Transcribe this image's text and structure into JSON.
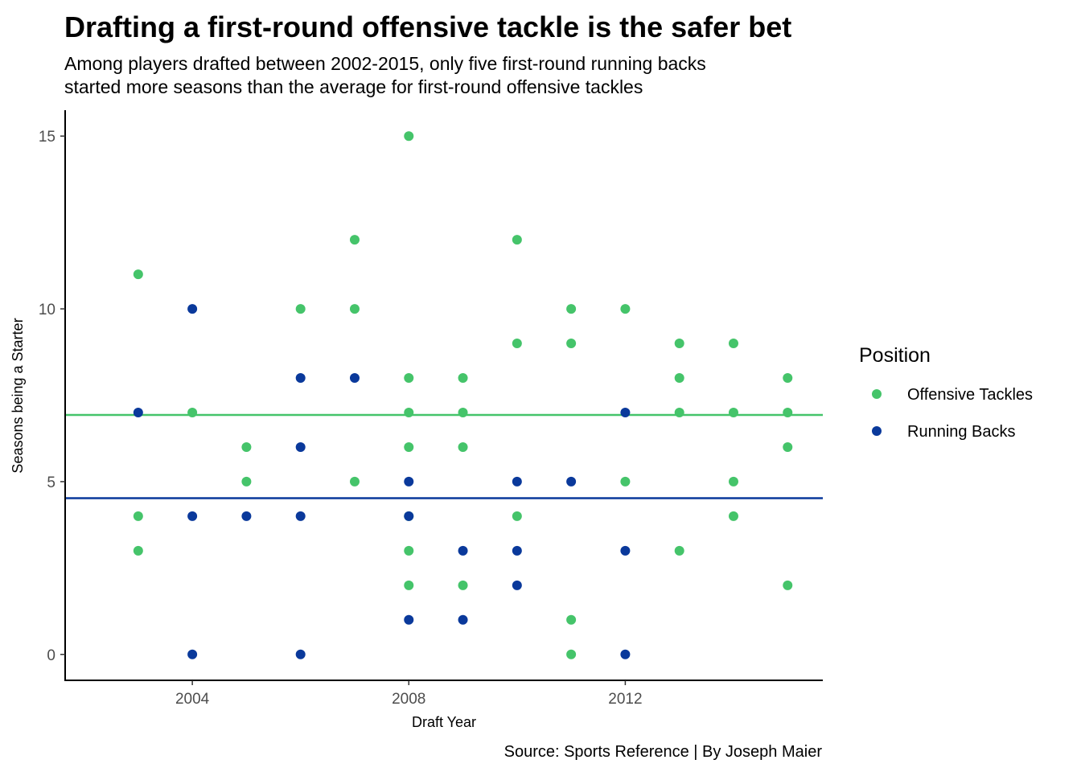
{
  "chart_data": {
    "type": "scatter",
    "title": "Drafting a first-round offensive tackle is the safer bet",
    "subtitle": [
      "Among players drafted between 2002-2015, only five first-round running backs",
      "started more seasons than the average for first-round offensive tackles"
    ],
    "caption": "Source: Sports Reference | By Joseph Maier",
    "xlabel": "Draft Year",
    "ylabel": "Seasons being a Starter",
    "xlim": [
      2001.65,
      2015.65
    ],
    "ylim": [
      -0.75,
      15.75
    ],
    "x_ticks": [
      2004,
      2008,
      2012
    ],
    "y_ticks": [
      0,
      5,
      10,
      15
    ],
    "grid": false,
    "legend": {
      "title": "Position",
      "placement": "right"
    },
    "reference_lines": [
      {
        "series": "Offensive Tackles",
        "y": 6.93
      },
      {
        "series": "Running Backs",
        "y": 4.52
      }
    ],
    "series": [
      {
        "name": "Offensive Tackles",
        "color": "#45C46A",
        "points": [
          [
            2003,
            11
          ],
          [
            2003,
            4
          ],
          [
            2003,
            3
          ],
          [
            2004,
            7
          ],
          [
            2005,
            6
          ],
          [
            2005,
            5
          ],
          [
            2006,
            10
          ],
          [
            2007,
            12
          ],
          [
            2007,
            10
          ],
          [
            2007,
            5
          ],
          [
            2008,
            15
          ],
          [
            2008,
            8
          ],
          [
            2008,
            7
          ],
          [
            2008,
            6
          ],
          [
            2008,
            4
          ],
          [
            2008,
            3
          ],
          [
            2008,
            2
          ],
          [
            2009,
            8
          ],
          [
            2009,
            7
          ],
          [
            2009,
            6
          ],
          [
            2009,
            2
          ],
          [
            2010,
            12
          ],
          [
            2010,
            9
          ],
          [
            2010,
            4
          ],
          [
            2011,
            10
          ],
          [
            2011,
            9
          ],
          [
            2011,
            1
          ],
          [
            2011,
            0
          ],
          [
            2012,
            10
          ],
          [
            2012,
            5
          ],
          [
            2013,
            9
          ],
          [
            2013,
            8
          ],
          [
            2013,
            7
          ],
          [
            2013,
            3
          ],
          [
            2014,
            9
          ],
          [
            2014,
            7
          ],
          [
            2014,
            5
          ],
          [
            2014,
            4
          ],
          [
            2015,
            8
          ],
          [
            2015,
            7
          ],
          [
            2015,
            6
          ],
          [
            2015,
            2
          ]
        ]
      },
      {
        "name": "Running Backs",
        "color": "#0A399B",
        "points": [
          [
            2003,
            7
          ],
          [
            2004,
            10
          ],
          [
            2004,
            4
          ],
          [
            2004,
            0
          ],
          [
            2005,
            4
          ],
          [
            2006,
            8
          ],
          [
            2006,
            6
          ],
          [
            2006,
            4
          ],
          [
            2006,
            0
          ],
          [
            2007,
            8
          ],
          [
            2008,
            5
          ],
          [
            2008,
            4
          ],
          [
            2008,
            1
          ],
          [
            2009,
            3
          ],
          [
            2009,
            1
          ],
          [
            2010,
            5
          ],
          [
            2010,
            3
          ],
          [
            2010,
            2
          ],
          [
            2011,
            5
          ],
          [
            2012,
            7
          ],
          [
            2012,
            3
          ],
          [
            2012,
            0
          ]
        ]
      }
    ]
  }
}
